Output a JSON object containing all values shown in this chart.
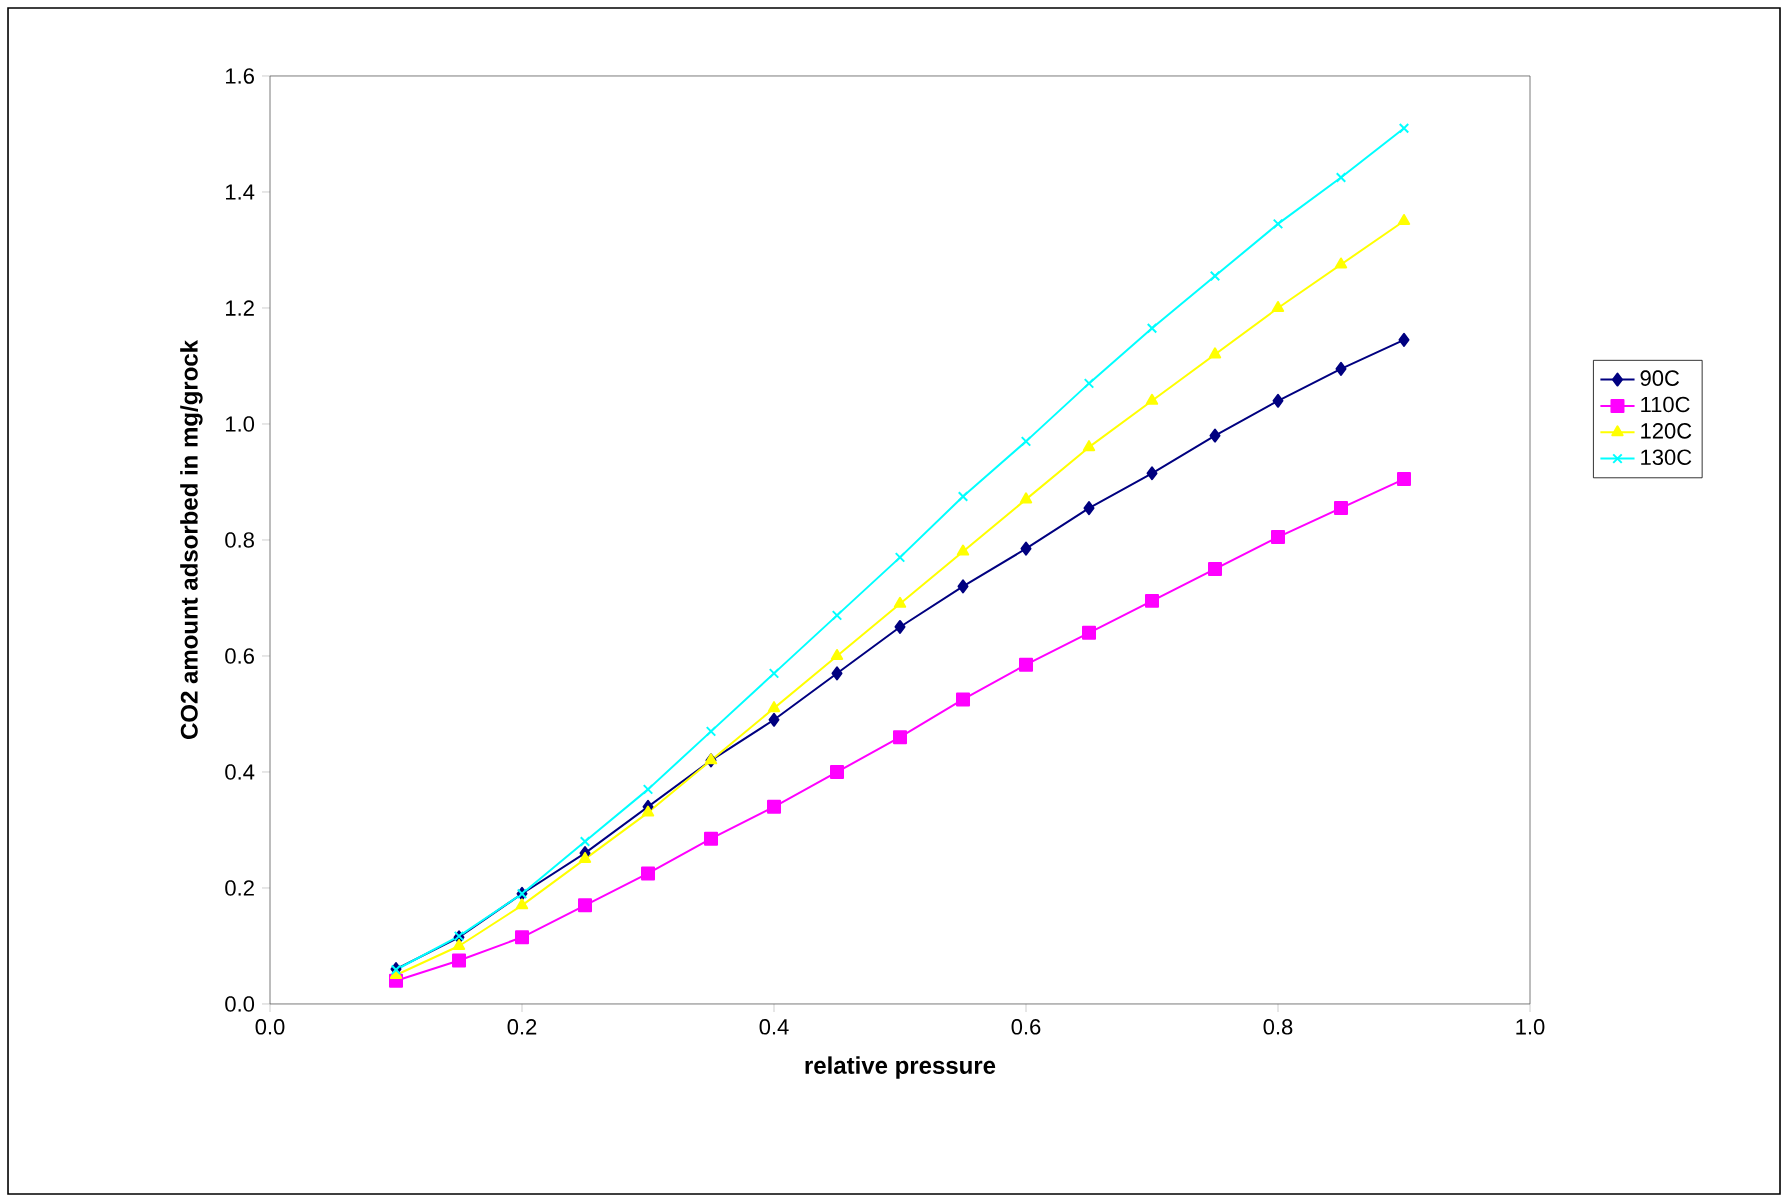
{
  "chart_data": {
    "type": "line",
    "xlabel": "relative pressure",
    "ylabel": "CO2 amount adsorbed in mg/grock",
    "x": [
      0.1,
      0.15,
      0.2,
      0.25,
      0.3,
      0.35,
      0.4,
      0.45,
      0.5,
      0.55,
      0.6,
      0.65,
      0.7,
      0.75,
      0.8,
      0.85,
      0.9
    ],
    "series": [
      {
        "name": "90C",
        "color": "#000080",
        "marker": "diamond",
        "values": [
          0.06,
          0.115,
          0.19,
          0.26,
          0.34,
          0.42,
          0.49,
          0.57,
          0.65,
          0.72,
          0.785,
          0.855,
          0.915,
          0.98,
          1.04,
          1.095,
          1.145
        ]
      },
      {
        "name": "110C",
        "color": "#ff00ff",
        "marker": "square",
        "values": [
          0.04,
          0.075,
          0.115,
          0.17,
          0.225,
          0.285,
          0.34,
          0.4,
          0.46,
          0.525,
          0.585,
          0.64,
          0.695,
          0.75,
          0.805,
          0.855,
          0.905
        ]
      },
      {
        "name": "120C",
        "color": "#ffff00",
        "marker": "triangle",
        "values": [
          0.05,
          0.1,
          0.17,
          0.25,
          0.33,
          0.42,
          0.51,
          0.6,
          0.69,
          0.78,
          0.87,
          0.96,
          1.04,
          1.12,
          1.2,
          1.275,
          1.35
        ]
      },
      {
        "name": "130C",
        "color": "#00ffff",
        "marker": "cross",
        "values": [
          0.059,
          0.117,
          0.19,
          0.28,
          0.37,
          0.47,
          0.57,
          0.67,
          0.77,
          0.875,
          0.97,
          1.07,
          1.165,
          1.255,
          1.345,
          1.425,
          1.51
        ]
      }
    ],
    "xlim": [
      0,
      1
    ],
    "ylim": [
      0,
      1.6
    ],
    "xticks": [
      {
        "value": 0,
        "label": "0.0"
      },
      {
        "value": 0.2,
        "label": "0.2"
      },
      {
        "value": 0.4,
        "label": "0.4"
      },
      {
        "value": 0.6,
        "label": "0.6"
      },
      {
        "value": 0.8,
        "label": "0.8"
      },
      {
        "value": 1,
        "label": "1.0"
      }
    ],
    "yticks": [
      {
        "value": 0,
        "label": "0.0"
      },
      {
        "value": 0.2,
        "label": "0.2"
      },
      {
        "value": 0.4,
        "label": "0.4"
      },
      {
        "value": 0.6,
        "label": "0.6"
      },
      {
        "value": 0.8,
        "label": "0.8"
      },
      {
        "value": 1,
        "label": "1.0"
      },
      {
        "value": 1.2,
        "label": "1.2"
      },
      {
        "value": 1.4,
        "label": "1.4"
      },
      {
        "value": 1.6,
        "label": "1.6"
      }
    ],
    "legend": "right"
  }
}
